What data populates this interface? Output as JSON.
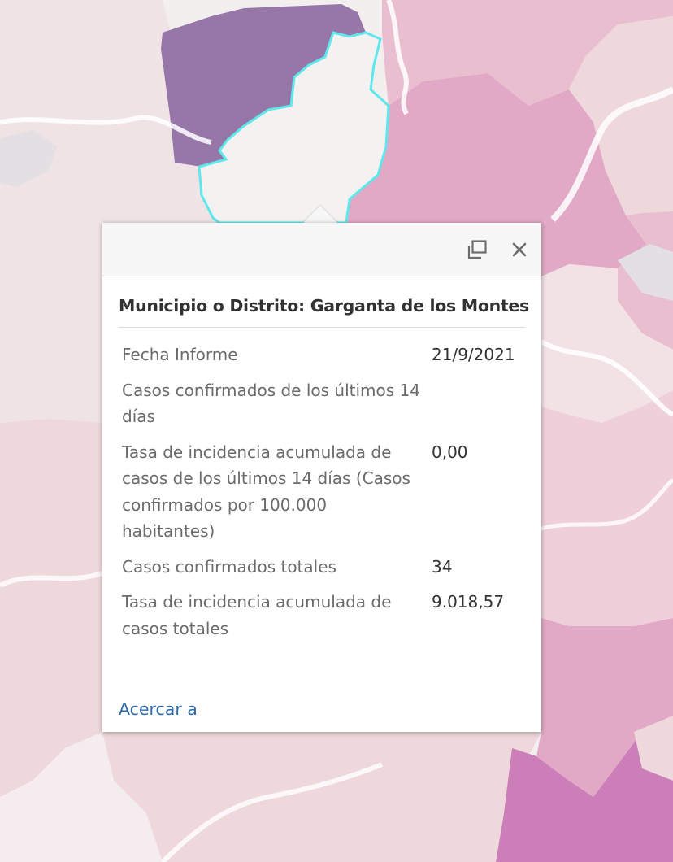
{
  "map": {
    "colors": {
      "background": "#f3efef",
      "light_pink": "#efd8dc",
      "pink": "#e9bfcf",
      "mid_pink": "#e2a9c6",
      "deep_pink": "#cc7eb8",
      "purple": "#9677a8",
      "selection_outline": "#5ee8ec",
      "road": "#ffffff",
      "water": "#e3dfe2"
    }
  },
  "popup": {
    "title": "Municipio o Distrito: Garganta de los Montes",
    "dock_icon": "dock-icon",
    "close_icon": "close-icon",
    "attributes": [
      {
        "label": "Fecha Informe",
        "value": "21/9/2021"
      },
      {
        "label": "Casos confirmados de los últimos 14 días",
        "value": ""
      },
      {
        "label": "Tasa de incidencia acumulada de casos de los últimos 14 días (Casos confirmados por 100.000 habitantes)",
        "value": "0,00"
      },
      {
        "label": "Casos confirmados totales",
        "value": "34"
      },
      {
        "label": "Tasa de incidencia acumulada de casos totales",
        "value": "9.018,57"
      }
    ],
    "zoom_link": "Acercar a"
  }
}
